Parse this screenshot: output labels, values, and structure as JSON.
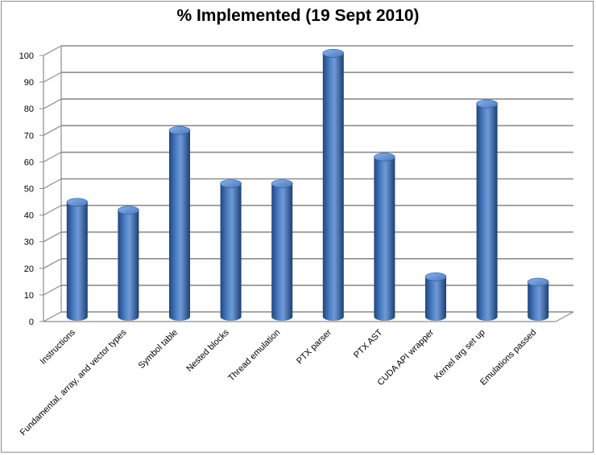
{
  "chart_data": {
    "type": "bar",
    "title": "% Implemented (19 Sept 2010)",
    "categories": [
      "Instructions",
      "Fundamental, array, and vector types",
      "Symbol table",
      "Nested blocks",
      "Thread emulation",
      "PTX parser",
      "PTX AST",
      "CUDA API wrapper",
      "Kernel arg set up",
      "Emulations passed"
    ],
    "values": [
      43,
      40,
      70,
      50,
      50,
      99,
      60,
      15,
      80,
      13
    ],
    "ylim": [
      0,
      100
    ],
    "yticks": [
      "0",
      "10",
      "20",
      "30",
      "40",
      "50",
      "60",
      "70",
      "80",
      "90",
      "100"
    ],
    "xlabel": "",
    "ylabel": "",
    "grid": true,
    "legend": "none",
    "colors": {
      "bar": "#3f6fb5",
      "bar_light": "#7fa6de",
      "bar_dark": "#1f4680",
      "grid": "#8c8c8c"
    }
  }
}
